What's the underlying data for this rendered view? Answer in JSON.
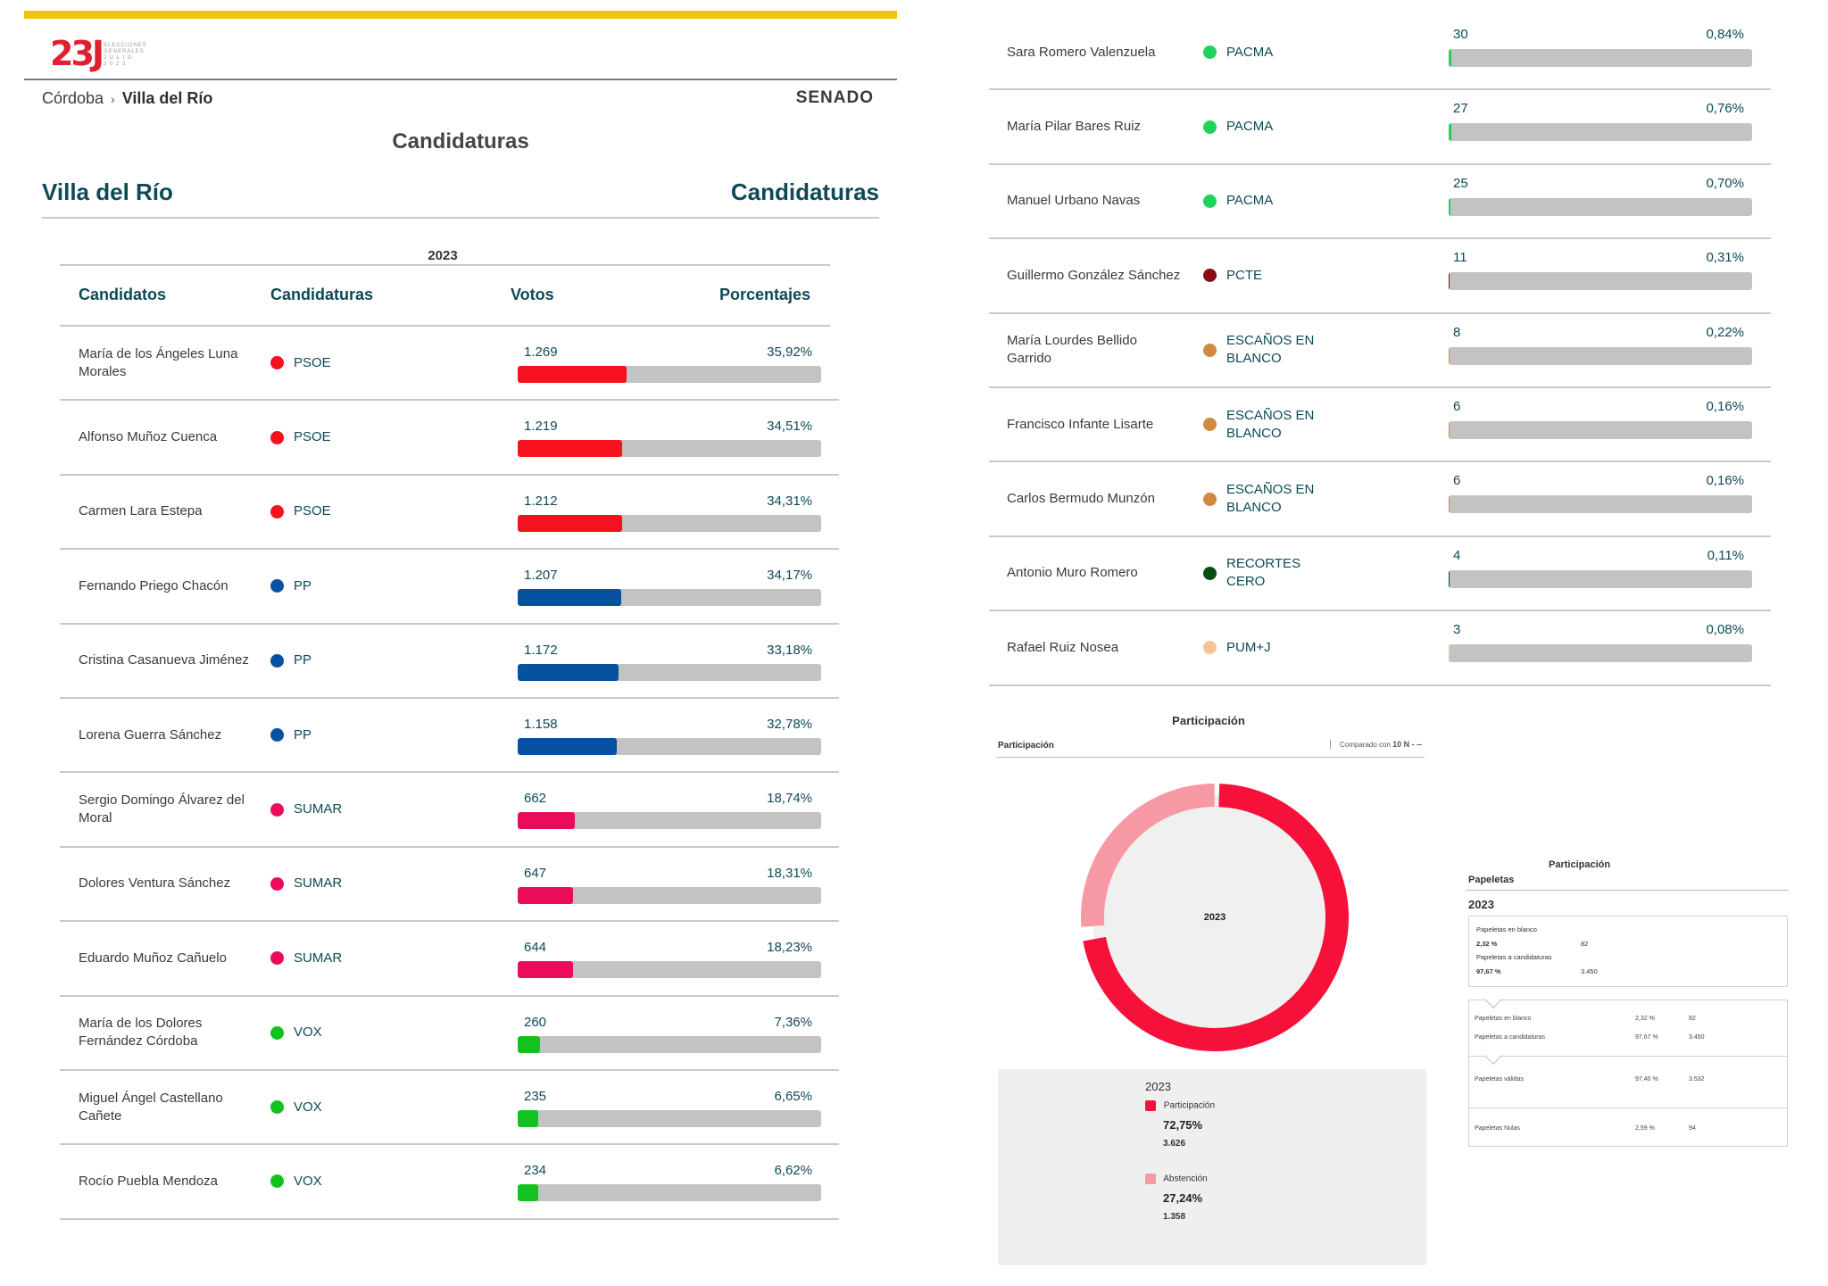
{
  "header": {
    "logo": {
      "number": "23J",
      "lines": [
        "ELECCIONES",
        "GENERALES",
        "J U L I O",
        "2 0 2 3"
      ]
    },
    "breadcrumb": {
      "parent": "Córdoba",
      "separator": "›",
      "current": "Villa del Río"
    },
    "chamber": "SENADO",
    "center_title": "Candidaturas",
    "place_title": "Villa del Río",
    "section_title": "Candidaturas"
  },
  "table": {
    "year": "2023",
    "columns": [
      "Candidatos",
      "Candidaturas",
      "Votos",
      "Porcentajes"
    ],
    "rows": [
      {
        "name": "María de los Ángeles Luna Morales",
        "party": "PSOE",
        "votes": "1.269",
        "pct": "35,92%",
        "share": 35.92,
        "color": "#f5111e"
      },
      {
        "name": "Alfonso Muñoz Cuenca",
        "party": "PSOE",
        "votes": "1.219",
        "pct": "34,51%",
        "share": 34.51,
        "color": "#f5111e"
      },
      {
        "name": "Carmen Lara Estepa",
        "party": "PSOE",
        "votes": "1.212",
        "pct": "34,31%",
        "share": 34.31,
        "color": "#f5111e"
      },
      {
        "name": "Fernando Priego Chacón",
        "party": "PP",
        "votes": "1.207",
        "pct": "34,17%",
        "share": 34.17,
        "color": "#0651a0"
      },
      {
        "name": "Cristina Casanueva Jiménez",
        "party": "PP",
        "votes": "1.172",
        "pct": "33,18%",
        "share": 33.18,
        "color": "#0651a0"
      },
      {
        "name": "Lorena Guerra Sánchez",
        "party": "PP",
        "votes": "1.158",
        "pct": "32,78%",
        "share": 32.78,
        "color": "#0651a0"
      },
      {
        "name": "Sergio Domingo Álvarez del Moral",
        "party": "SUMAR",
        "votes": "662",
        "pct": "18,74%",
        "share": 18.74,
        "color": "#ea0c5a"
      },
      {
        "name": "Dolores Ventura Sánchez",
        "party": "SUMAR",
        "votes": "647",
        "pct": "18,31%",
        "share": 18.31,
        "color": "#ea0c5a"
      },
      {
        "name": "Eduardo Muñoz Cañuelo",
        "party": "SUMAR",
        "votes": "644",
        "pct": "18,23%",
        "share": 18.23,
        "color": "#ea0c5a"
      },
      {
        "name": "María de los Dolores Fernández Córdoba",
        "party": "VOX",
        "votes": "260",
        "pct": "7,36%",
        "share": 7.36,
        "color": "#14c21f"
      },
      {
        "name": "Miguel Ángel Castellano Cañete",
        "party": "VOX",
        "votes": "235",
        "pct": "6,65%",
        "share": 6.65,
        "color": "#14c21f"
      },
      {
        "name": "Rocío Puebla Mendoza",
        "party": "VOX",
        "votes": "234",
        "pct": "6,62%",
        "share": 6.62,
        "color": "#14c21f"
      }
    ]
  },
  "right_rows": [
    {
      "name": "Sara Romero Valenzuela",
      "party": "PACMA",
      "votes": "30",
      "pct": "0,84%",
      "share": 0.84,
      "color": "#1fd35a"
    },
    {
      "name": "María Pilar Bares Ruiz",
      "party": "PACMA",
      "votes": "27",
      "pct": "0,76%",
      "share": 0.76,
      "color": "#1fd35a"
    },
    {
      "name": "Manuel Urbano Navas",
      "party": "PACMA",
      "votes": "25",
      "pct": "0,70%",
      "share": 0.7,
      "color": "#1fd35a"
    },
    {
      "name": "Guillermo González Sánchez",
      "party": "PCTE",
      "votes": "11",
      "pct": "0,31%",
      "share": 0.31,
      "color": "#8b0d12"
    },
    {
      "name": "María Lourdes Bellido Garrido",
      "party": "ESCAÑOS EN BLANCO",
      "votes": "8",
      "pct": "0,22%",
      "share": 0.22,
      "color": "#d1883f"
    },
    {
      "name": "Francisco Infante Lisarte",
      "party": "ESCAÑOS EN BLANCO",
      "votes": "6",
      "pct": "0,16%",
      "share": 0.16,
      "color": "#d1883f"
    },
    {
      "name": "Carlos Bermudo Munzón",
      "party": "ESCAÑOS EN BLANCO",
      "votes": "6",
      "pct": "0,16%",
      "share": 0.16,
      "color": "#d1883f"
    },
    {
      "name": "Antonio Muro Romero",
      "party": "RECORTES CERO",
      "votes": "4",
      "pct": "0,11%",
      "share": 0.11,
      "color": "#0a4d12"
    },
    {
      "name": "Rafael Ruiz Nosea",
      "party": "PUM+J",
      "votes": "3",
      "pct": "0,08%",
      "share": 0.08,
      "color": "#f5c59a"
    }
  ],
  "participation": {
    "title": "Participación",
    "subtitle": "Participación",
    "compare_prefix": "Comparado con",
    "compare_value": "10 N - --",
    "donut_label": "2023",
    "legend_year": "2023",
    "participation_label": "Participación",
    "participation_pct": "72,75%",
    "participation_count": "3.626",
    "participation_share": 72.75,
    "abstention_label": "Abstención",
    "abstention_pct": "27,24%",
    "abstention_count": "1.358",
    "participation_color": "#f5113a",
    "abstention_color": "#f799a4"
  },
  "papeletas": {
    "title": "Participación",
    "subtitle": "Papeletas",
    "year": "2023",
    "blank_label": "Papeletas en blanco",
    "blank_pct": "2,32 %",
    "blank_count": "82",
    "cand_label": "Papeletas a candidaturas",
    "cand_pct": "97,67 %",
    "cand_count": "3.450",
    "rows": [
      {
        "label": "Papeletas en blanco",
        "pct": "2,32 %",
        "count": "82"
      },
      {
        "label": "Papeletas a candidaturas",
        "pct": "97,67 %",
        "count": "3.450"
      },
      {
        "label": "Papeletas válidas",
        "pct": "97,40 %",
        "count": "3.532"
      },
      {
        "label": "Papeletas Nulas",
        "pct": "2,59 %",
        "count": "94"
      }
    ]
  }
}
